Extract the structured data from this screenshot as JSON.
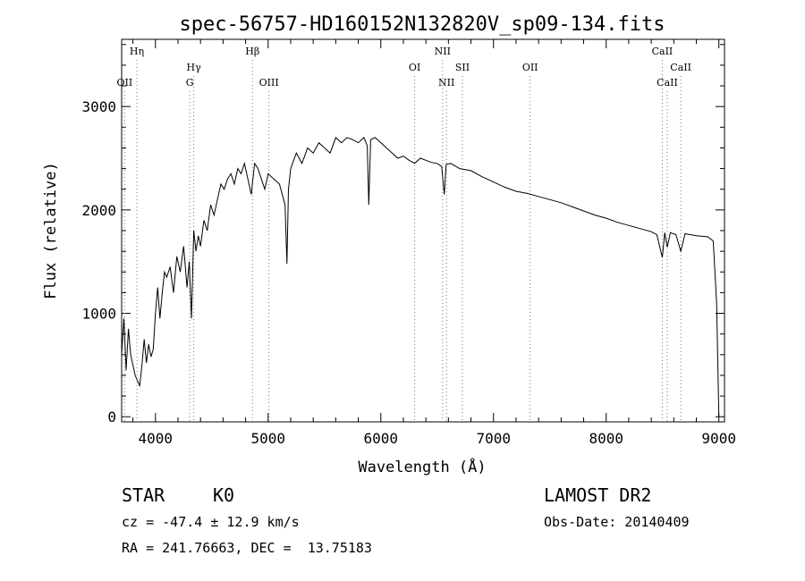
{
  "chart_data": {
    "type": "line",
    "title": "spec-56757-HD160152N132820V_sp09-134.fits",
    "xlabel": "Wavelength (Å)",
    "ylabel": "Flux (relative)",
    "xlim": [
      3700,
      9050
    ],
    "ylim": [
      -50,
      3650
    ],
    "xticks": [
      "4000",
      "5000",
      "6000",
      "7000",
      "8000",
      "9000"
    ],
    "yticks": [
      "0",
      "1000",
      "2000",
      "3000"
    ],
    "series": [
      {
        "x": [
          3700,
          3720,
          3740,
          3760,
          3780,
          3800,
          3820,
          3840,
          3860,
          3880,
          3900,
          3920,
          3940,
          3960,
          3980,
          4000,
          4020,
          4040,
          4060,
          4080,
          4100,
          4130,
          4160,
          4190,
          4220,
          4250,
          4280,
          4300,
          4320,
          4340,
          4360,
          4380,
          4400,
          4430,
          4460,
          4490,
          4520,
          4550,
          4580,
          4610,
          4640,
          4670,
          4700,
          4730,
          4760,
          4790,
          4820,
          4850,
          4880,
          4910,
          4940,
          4970,
          5000,
          5050,
          5100,
          5150,
          5167,
          5180,
          5200,
          5250,
          5300,
          5350,
          5400,
          5450,
          5500,
          5550,
          5600,
          5650,
          5700,
          5750,
          5800,
          5850,
          5880,
          5893,
          5910,
          5950,
          6000,
          6050,
          6100,
          6150,
          6200,
          6250,
          6300,
          6350,
          6400,
          6450,
          6500,
          6540,
          6563,
          6580,
          6620,
          6700,
          6800,
          6900,
          7000,
          7100,
          7200,
          7300,
          7400,
          7500,
          7600,
          7700,
          7800,
          7900,
          8000,
          8100,
          8200,
          8300,
          8400,
          8450,
          8498,
          8520,
          8542,
          8570,
          8620,
          8662,
          8700,
          8800,
          8900,
          8950,
          8980,
          9000
        ],
        "y": [
          600,
          950,
          450,
          850,
          600,
          500,
          400,
          350,
          300,
          500,
          750,
          520,
          700,
          580,
          650,
          1000,
          1250,
          950,
          1200,
          1400,
          1350,
          1450,
          1200,
          1550,
          1400,
          1650,
          1250,
          1500,
          950,
          1800,
          1600,
          1750,
          1650,
          1900,
          1800,
          2050,
          1950,
          2100,
          2250,
          2200,
          2300,
          2350,
          2250,
          2400,
          2350,
          2450,
          2300,
          2150,
          2450,
          2400,
          2300,
          2200,
          2350,
          2300,
          2250,
          2050,
          1480,
          2200,
          2400,
          2550,
          2450,
          2600,
          2550,
          2650,
          2600,
          2550,
          2700,
          2650,
          2700,
          2680,
          2650,
          2700,
          2620,
          2050,
          2680,
          2700,
          2650,
          2600,
          2550,
          2500,
          2520,
          2480,
          2450,
          2500,
          2480,
          2460,
          2450,
          2420,
          2150,
          2440,
          2450,
          2400,
          2380,
          2320,
          2270,
          2220,
          2180,
          2160,
          2130,
          2100,
          2070,
          2030,
          1990,
          1950,
          1920,
          1880,
          1850,
          1820,
          1790,
          1760,
          1540,
          1780,
          1640,
          1780,
          1760,
          1600,
          1770,
          1750,
          1740,
          1700,
          1100,
          0
        ]
      }
    ],
    "lines": {
      "top": [
        {
          "label": "Hη",
          "x": 3835
        },
        {
          "label": "Hβ",
          "x": 4861
        },
        {
          "label": "NII",
          "x": 6548
        },
        {
          "label": "CaII",
          "x": 8498
        }
      ],
      "mid": [
        {
          "label": "Hγ",
          "x": 4340
        },
        {
          "label": "OI",
          "x": 6300
        },
        {
          "label": "OII",
          "x": 7325
        },
        {
          "label": "SII",
          "x": 6724
        },
        {
          "label": "CaII",
          "x": 8662
        }
      ],
      "low": [
        {
          "label": "OII",
          "x": 3727
        },
        {
          "label": "G",
          "x": 4304
        },
        {
          "label": "OIII",
          "x": 5007
        },
        {
          "label": "NII",
          "x": 6583
        },
        {
          "label": "CaII",
          "x": 8542
        }
      ]
    }
  },
  "info": {
    "object_class": "STAR",
    "subclass": "K0",
    "survey": "LAMOST DR2",
    "cz_text": "cz = -47.4 ± 12.9 km/s",
    "obs_date": "Obs-Date: 20140409",
    "coords": "RA = 241.76663, DEC =  13.75183"
  }
}
